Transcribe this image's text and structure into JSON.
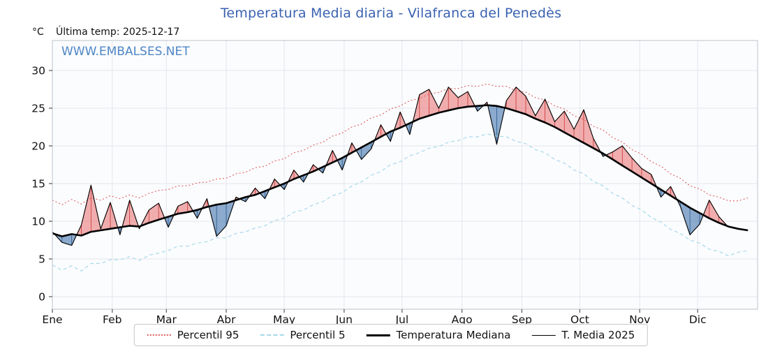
{
  "title": "Temperatura Media diaria - Vilafranca del Penedès",
  "header": {
    "units_label": "°C",
    "last_temp_label": "Última temp: 2025-12-17",
    "watermark": "WWW.EMBALSES.NET"
  },
  "colors": {
    "title": "#3a62b0",
    "watermark": "#4e86c6",
    "p95_line": "#e05c5c",
    "p5_line": "#a6d9ea",
    "median_line": "#000000",
    "t2025_line": "#000000",
    "fill_above": "rgba(233,108,108,0.55)",
    "fill_above_edge": "rgba(198,52,52,0.9)",
    "fill_below": "rgba(78,126,178,0.65)",
    "fill_below_edge": "rgba(40,90,140,0.9)",
    "grid": "#e3e6ec",
    "box": "#c9ccd4",
    "plot_bg": "#fbfcfe"
  },
  "legend": [
    {
      "label": "Percentil 95",
      "style": "dotted",
      "color": "#e05c5c",
      "thickness": 2
    },
    {
      "label": "Percentil 5",
      "style": "dashed",
      "color": "#a6d9ea",
      "thickness": 2
    },
    {
      "label": "Temperatura Mediana",
      "style": "solid",
      "color": "#000000",
      "thickness": 3
    },
    {
      "label": "T. Media 2025",
      "style": "solid",
      "color": "#000000",
      "thickness": 1
    }
  ],
  "chart_data": {
    "type": "line",
    "title": "Temperatura Media diaria - Vilafranca del Penedès",
    "ylabel": "°C",
    "ylim": [
      0,
      30
    ],
    "y_ticks": [
      0,
      5,
      10,
      15,
      20,
      25,
      30
    ],
    "x_month_labels": [
      "Ene",
      "Feb",
      "Mar",
      "Abr",
      "May",
      "Jun",
      "Jul",
      "Ago",
      "Sep",
      "Oct",
      "Nov",
      "Dic"
    ],
    "x_month_start_days": [
      0,
      31,
      59,
      90,
      120,
      151,
      181,
      212,
      243,
      273,
      304,
      334
    ],
    "x_total_days": 365,
    "x_step_days": 5,
    "grid": true,
    "legend_position": "bottom",
    "series": [
      {
        "name": "Percentil 95",
        "values": [
          12.8,
          12.2,
          12.9,
          12.3,
          13.1,
          12.8,
          13.4,
          13.0,
          13.5,
          13.1,
          13.7,
          14.1,
          14.2,
          14.7,
          14.7,
          15.1,
          15.2,
          15.6,
          15.7,
          16.3,
          16.5,
          17.1,
          17.3,
          18.0,
          18.3,
          19.1,
          19.4,
          20.1,
          20.5,
          21.3,
          21.7,
          22.5,
          22.9,
          23.7,
          24.1,
          24.9,
          25.3,
          26.0,
          26.3,
          26.9,
          27.1,
          27.6,
          27.6,
          28.0,
          27.9,
          28.2,
          27.9,
          27.9,
          27.3,
          27.1,
          26.4,
          26.1,
          25.3,
          24.9,
          24.0,
          23.5,
          22.6,
          22.1,
          21.1,
          20.5,
          19.5,
          18.9,
          17.9,
          17.3,
          16.3,
          15.7,
          14.7,
          14.3,
          13.5,
          13.2,
          12.7,
          12.7,
          13.1
        ]
      },
      {
        "name": "Percentil 5",
        "values": [
          4.2,
          3.5,
          4.1,
          3.4,
          4.4,
          4.4,
          4.9,
          4.9,
          5.3,
          4.8,
          5.5,
          5.8,
          6.1,
          6.7,
          6.7,
          7.1,
          7.3,
          7.8,
          7.8,
          8.4,
          8.6,
          9.1,
          9.4,
          10.1,
          10.4,
          11.2,
          11.5,
          12.2,
          12.6,
          13.4,
          13.8,
          14.7,
          15.2,
          16.1,
          16.6,
          17.5,
          17.9,
          18.7,
          19.1,
          19.7,
          19.9,
          20.5,
          20.7,
          21.2,
          21.2,
          21.6,
          21.3,
          21.2,
          20.6,
          20.3,
          19.5,
          19.1,
          18.2,
          17.7,
          16.8,
          16.3,
          15.3,
          14.7,
          13.7,
          13.1,
          12.1,
          11.5,
          10.5,
          9.9,
          8.9,
          8.4,
          7.5,
          7.1,
          6.3,
          6.0,
          5.4,
          5.9,
          6.1
        ]
      },
      {
        "name": "Temperatura Mediana",
        "values": [
          8.4,
          8.0,
          8.3,
          8.1,
          8.6,
          8.8,
          9.0,
          9.2,
          9.4,
          9.3,
          9.8,
          10.2,
          10.6,
          11.0,
          11.2,
          11.5,
          11.9,
          12.2,
          12.4,
          12.8,
          13.2,
          13.5,
          14.0,
          14.5,
          15.0,
          15.6,
          16.1,
          16.6,
          17.2,
          17.8,
          18.4,
          19.1,
          19.8,
          20.5,
          21.2,
          21.9,
          22.4,
          23.0,
          23.6,
          24.0,
          24.4,
          24.7,
          25.0,
          25.2,
          25.3,
          25.4,
          25.3,
          25.0,
          24.6,
          24.2,
          23.6,
          23.1,
          22.5,
          21.8,
          21.1,
          20.4,
          19.7,
          19.0,
          18.2,
          17.4,
          16.6,
          15.8,
          15.0,
          14.2,
          13.4,
          12.6,
          11.8,
          11.1,
          10.4,
          9.8,
          9.3,
          9.0,
          8.8
        ]
      },
      {
        "name": "T. Media 2025",
        "values": [
          8.6,
          7.2,
          6.8,
          9.5,
          14.8,
          9.0,
          12.5,
          8.2,
          12.8,
          9.0,
          11.5,
          12.4,
          9.2,
          12.0,
          12.6,
          10.4,
          13.0,
          8.0,
          9.4,
          13.2,
          12.6,
          14.4,
          13.0,
          15.6,
          14.2,
          16.8,
          15.2,
          17.5,
          16.4,
          19.4,
          16.8,
          20.4,
          18.2,
          19.6,
          22.8,
          20.6,
          24.5,
          21.5,
          26.8,
          27.5,
          25.0,
          27.8,
          26.4,
          27.2,
          24.6,
          25.8,
          20.2,
          26.0,
          27.8,
          26.6,
          24.0,
          26.2,
          23.2,
          24.6,
          22.2,
          24.8,
          21.0,
          18.6,
          19.2,
          20.0,
          18.4,
          17.0,
          16.2,
          13.2,
          14.6,
          12.0,
          8.2,
          9.6,
          12.8,
          10.6,
          9.2
        ]
      }
    ]
  }
}
